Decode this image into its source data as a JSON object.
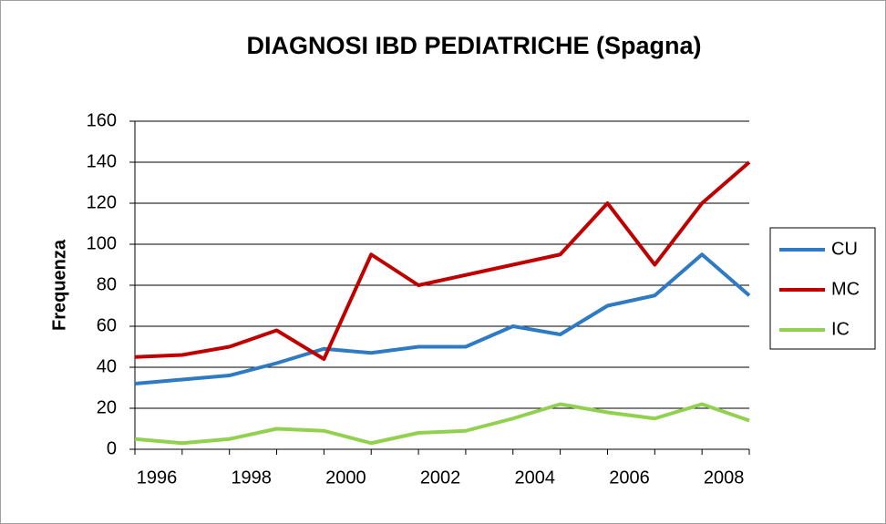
{
  "chart_data": {
    "type": "line",
    "title": "DIAGNOSI IBD PEDIATRICHE (Spagna)",
    "y_label": "Frequenza",
    "categories": [
      "1996",
      null,
      "1998",
      null,
      "2000",
      null,
      "2002",
      null,
      "2004",
      null,
      "2006",
      null,
      "2008",
      null
    ],
    "series": [
      {
        "name": "CU",
        "color": "#2e7bc4",
        "values": [
          32,
          34,
          36,
          42,
          49,
          47,
          50,
          50,
          60,
          56,
          70,
          75,
          95,
          75
        ]
      },
      {
        "name": "MC",
        "color": "#c00000",
        "values": [
          45,
          46,
          50,
          58,
          44,
          95,
          80,
          85,
          90,
          95,
          120,
          90,
          120,
          140
        ]
      },
      {
        "name": "IC",
        "color": "#92d050",
        "values": [
          5,
          3,
          5,
          10,
          9,
          3,
          8,
          9,
          15,
          22,
          18,
          15,
          22,
          14
        ]
      }
    ],
    "ylim": [
      0,
      160
    ],
    "yticks": [
      0,
      20,
      40,
      60,
      80,
      100,
      120,
      140,
      160
    ],
    "grid": true,
    "legend": "right"
  }
}
